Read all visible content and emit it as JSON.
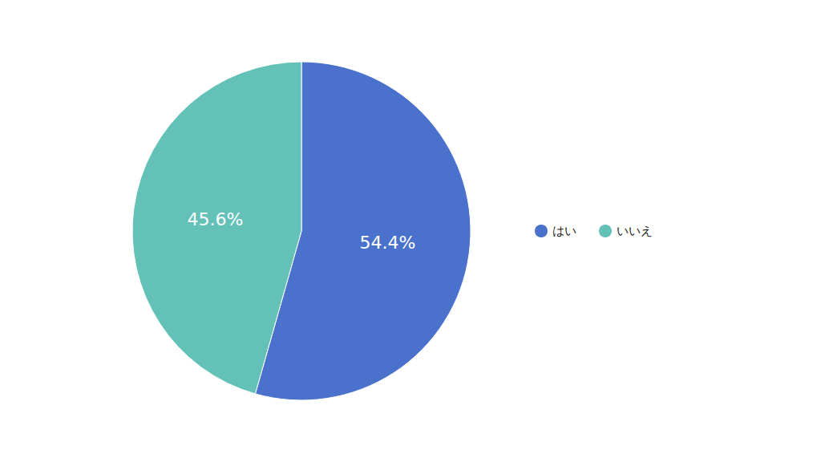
{
  "chart_data": {
    "type": "pie",
    "categories": [
      "はい",
      "いいえ"
    ],
    "values": [
      54.4,
      45.6
    ],
    "value_labels": [
      "54.4%",
      "45.6%"
    ],
    "colors": [
      "#4a72cc",
      "#63c1b8"
    ],
    "data_labels": true,
    "legend": "right"
  }
}
